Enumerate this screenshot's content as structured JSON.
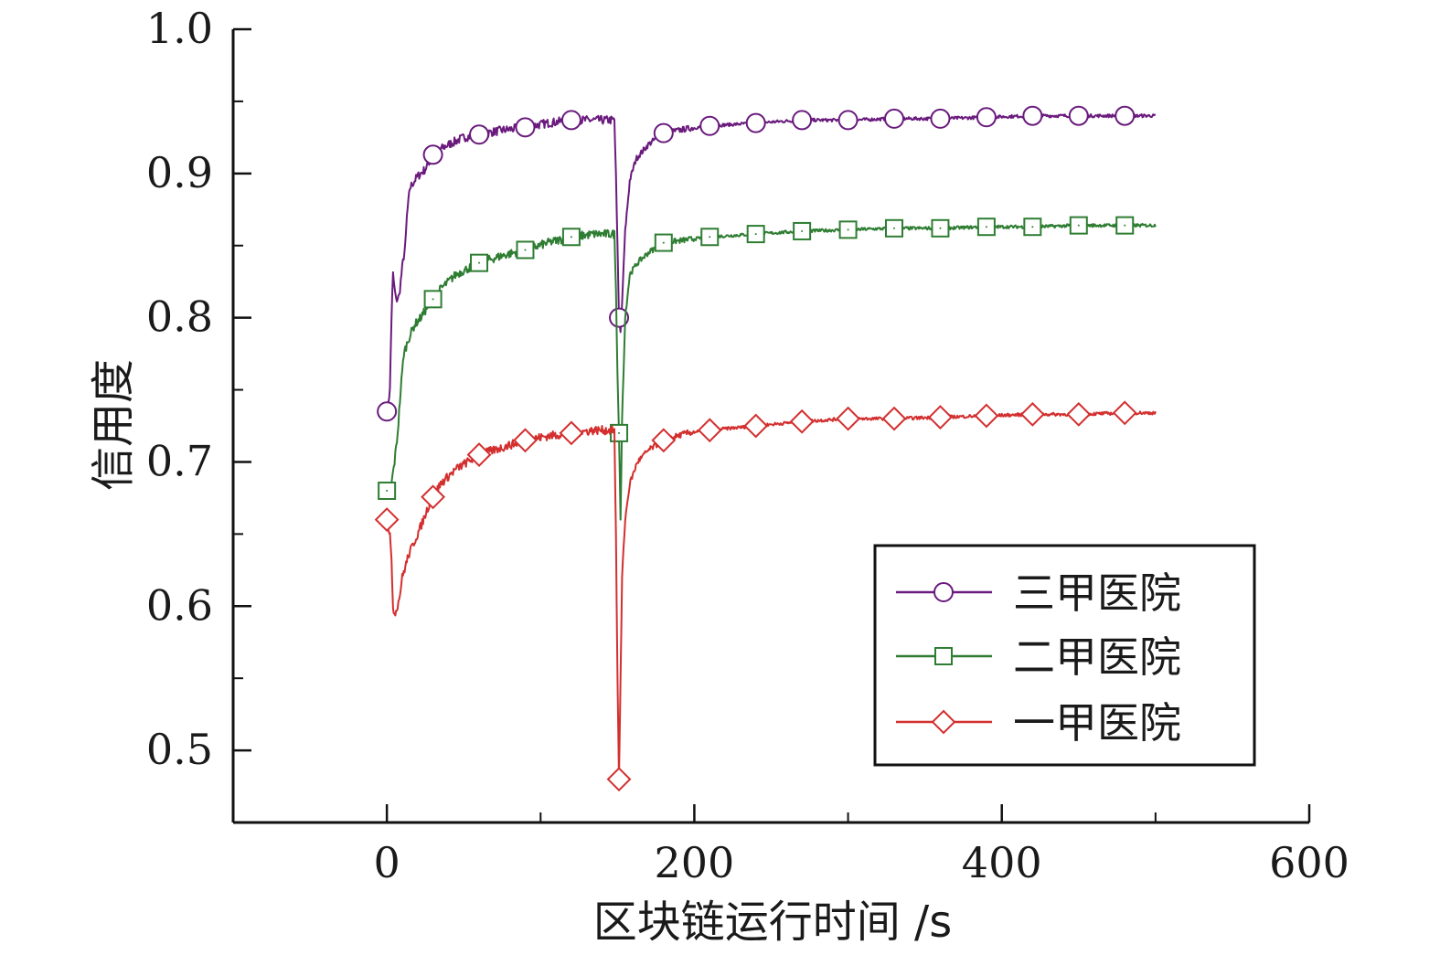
{
  "chart_data": {
    "type": "line",
    "xlabel": "区块链运行时间 /s",
    "ylabel": "信用度",
    "xlim": [
      -100,
      600
    ],
    "ylim": [
      0.45,
      1.0
    ],
    "x_ticks": [
      0,
      200,
      400,
      600
    ],
    "y_ticks": [
      0.5,
      0.6,
      0.7,
      0.8,
      0.9,
      1.0
    ],
    "x_tick_labels": [
      "0",
      "200",
      "400",
      "600"
    ],
    "y_tick_labels": [
      "0.5",
      "0.6",
      "0.7",
      "0.8",
      "0.9",
      "1.0"
    ],
    "grid": false,
    "legend_position": "lower-right",
    "series": [
      {
        "name": "三甲医院",
        "color": "#6a1b7d",
        "marker": "circle",
        "points": [
          [
            0,
            0.735
          ],
          [
            2,
            0.75
          ],
          [
            3,
            0.8
          ],
          [
            4,
            0.83
          ],
          [
            5,
            0.82
          ],
          [
            6,
            0.812
          ],
          [
            8,
            0.815
          ],
          [
            10,
            0.835
          ],
          [
            12,
            0.85
          ],
          [
            13,
            0.87
          ],
          [
            15,
            0.89
          ],
          [
            18,
            0.895
          ],
          [
            20,
            0.898
          ],
          [
            25,
            0.903
          ],
          [
            30,
            0.913
          ],
          [
            35,
            0.917
          ],
          [
            40,
            0.92
          ],
          [
            50,
            0.925
          ],
          [
            60,
            0.927
          ],
          [
            75,
            0.93
          ],
          [
            90,
            0.932
          ],
          [
            105,
            0.935
          ],
          [
            120,
            0.937
          ],
          [
            135,
            0.937
          ],
          [
            148,
            0.937
          ],
          [
            149,
            0.9
          ],
          [
            150,
            0.85
          ],
          [
            151,
            0.8
          ],
          [
            152,
            0.79
          ],
          [
            153,
            0.81
          ],
          [
            155,
            0.86
          ],
          [
            158,
            0.895
          ],
          [
            162,
            0.91
          ],
          [
            170,
            0.92
          ],
          [
            180,
            0.928
          ],
          [
            195,
            0.931
          ],
          [
            210,
            0.933
          ],
          [
            225,
            0.934
          ],
          [
            240,
            0.935
          ],
          [
            270,
            0.937
          ],
          [
            300,
            0.937
          ],
          [
            330,
            0.938
          ],
          [
            360,
            0.938
          ],
          [
            390,
            0.939
          ],
          [
            420,
            0.94
          ],
          [
            450,
            0.94
          ],
          [
            480,
            0.94
          ],
          [
            500,
            0.94
          ]
        ],
        "marker_x": [
          0,
          30,
          60,
          90,
          120,
          151,
          180,
          210,
          240,
          270,
          300,
          330,
          360,
          390,
          420,
          450,
          480
        ]
      },
      {
        "name": "二甲医院",
        "color": "#2e7d32",
        "marker": "square",
        "points": [
          [
            0,
            0.68
          ],
          [
            3,
            0.685
          ],
          [
            5,
            0.7
          ],
          [
            7,
            0.72
          ],
          [
            9,
            0.75
          ],
          [
            11,
            0.775
          ],
          [
            14,
            0.785
          ],
          [
            18,
            0.795
          ],
          [
            22,
            0.8
          ],
          [
            28,
            0.81
          ],
          [
            35,
            0.82
          ],
          [
            45,
            0.83
          ],
          [
            60,
            0.838
          ],
          [
            75,
            0.843
          ],
          [
            90,
            0.847
          ],
          [
            105,
            0.852
          ],
          [
            120,
            0.856
          ],
          [
            135,
            0.858
          ],
          [
            148,
            0.858
          ],
          [
            149,
            0.82
          ],
          [
            150,
            0.76
          ],
          [
            151,
            0.72
          ],
          [
            152,
            0.66
          ],
          [
            153,
            0.73
          ],
          [
            155,
            0.8
          ],
          [
            158,
            0.83
          ],
          [
            163,
            0.838
          ],
          [
            170,
            0.845
          ],
          [
            180,
            0.852
          ],
          [
            195,
            0.854
          ],
          [
            210,
            0.856
          ],
          [
            240,
            0.858
          ],
          [
            270,
            0.86
          ],
          [
            300,
            0.861
          ],
          [
            330,
            0.862
          ],
          [
            360,
            0.862
          ],
          [
            390,
            0.863
          ],
          [
            420,
            0.863
          ],
          [
            450,
            0.864
          ],
          [
            480,
            0.864
          ],
          [
            500,
            0.864
          ]
        ],
        "marker_x": [
          0,
          30,
          60,
          90,
          120,
          151,
          180,
          210,
          240,
          270,
          300,
          330,
          360,
          390,
          420,
          450,
          480
        ]
      },
      {
        "name": "一甲医院",
        "color": "#d32f2f",
        "marker": "diamond",
        "points": [
          [
            0,
            0.66
          ],
          [
            2,
            0.65
          ],
          [
            3,
            0.63
          ],
          [
            4,
            0.6
          ],
          [
            5,
            0.595
          ],
          [
            6,
            0.597
          ],
          [
            8,
            0.605
          ],
          [
            10,
            0.62
          ],
          [
            14,
            0.635
          ],
          [
            18,
            0.645
          ],
          [
            22,
            0.655
          ],
          [
            28,
            0.672
          ],
          [
            35,
            0.685
          ],
          [
            45,
            0.695
          ],
          [
            60,
            0.705
          ],
          [
            75,
            0.71
          ],
          [
            90,
            0.715
          ],
          [
            105,
            0.718
          ],
          [
            120,
            0.72
          ],
          [
            135,
            0.722
          ],
          [
            148,
            0.722
          ],
          [
            149,
            0.65
          ],
          [
            150,
            0.55
          ],
          [
            151,
            0.48
          ],
          [
            152,
            0.55
          ],
          [
            153,
            0.62
          ],
          [
            155,
            0.66
          ],
          [
            158,
            0.685
          ],
          [
            163,
            0.7
          ],
          [
            170,
            0.708
          ],
          [
            180,
            0.715
          ],
          [
            195,
            0.72
          ],
          [
            210,
            0.722
          ],
          [
            240,
            0.725
          ],
          [
            270,
            0.728
          ],
          [
            300,
            0.73
          ],
          [
            330,
            0.73
          ],
          [
            360,
            0.731
          ],
          [
            390,
            0.732
          ],
          [
            420,
            0.733
          ],
          [
            450,
            0.733
          ],
          [
            480,
            0.734
          ],
          [
            500,
            0.734
          ]
        ],
        "marker_x": [
          0,
          30,
          60,
          90,
          120,
          151,
          180,
          210,
          240,
          270,
          300,
          330,
          360,
          390,
          420,
          450,
          480
        ]
      }
    ]
  }
}
